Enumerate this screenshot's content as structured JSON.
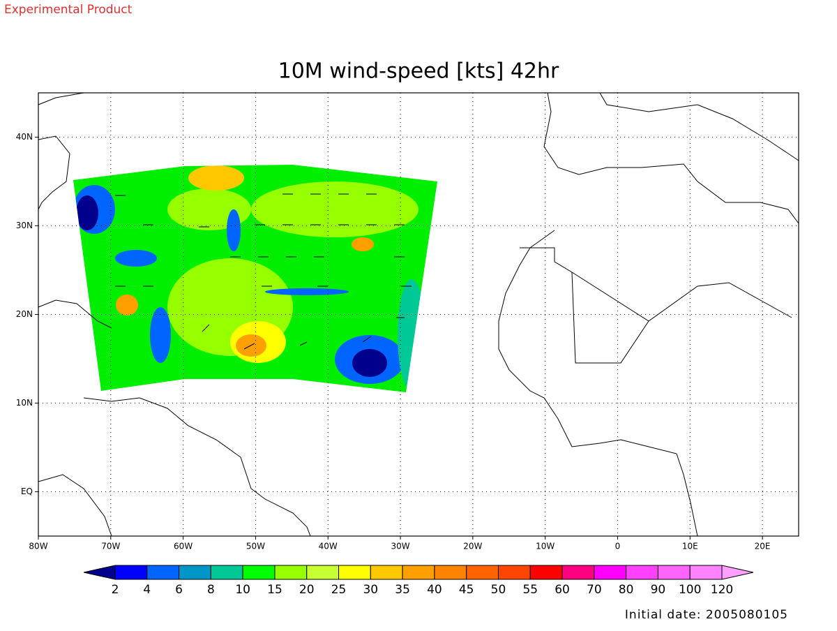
{
  "header": {
    "label": "Experimental Product"
  },
  "map": {
    "title": "10M wind-speed [kts] 42hr",
    "xlim": [
      -80,
      25
    ],
    "ylim": [
      -5,
      45
    ],
    "xticks": [
      {
        "value": -80,
        "label": "80W"
      },
      {
        "value": -70,
        "label": "70W"
      },
      {
        "value": -60,
        "label": "60W"
      },
      {
        "value": -50,
        "label": "50W"
      },
      {
        "value": -40,
        "label": "40W"
      },
      {
        "value": -30,
        "label": "30W"
      },
      {
        "value": -20,
        "label": "20W"
      },
      {
        "value": -10,
        "label": "10W"
      },
      0,
      {
        "value": 10,
        "label": "10E"
      },
      {
        "value": 20,
        "label": "20E"
      }
    ],
    "yticks": [
      {
        "value": 40,
        "label": "40N"
      },
      {
        "value": 30,
        "label": "30N"
      },
      {
        "value": 20,
        "label": "20N"
      },
      {
        "value": 10,
        "label": "10N"
      },
      {
        "value": 0,
        "label": "EQ"
      }
    ],
    "grid": true
  },
  "colorbar": {
    "levels": [
      2,
      4,
      6,
      8,
      10,
      15,
      20,
      25,
      30,
      35,
      40,
      45,
      50,
      55,
      60,
      70,
      80,
      90,
      100,
      120
    ],
    "colors": [
      "#00008c",
      "#0000ff",
      "#0064ff",
      "#0096c8",
      "#00c896",
      "#00ff00",
      "#96ff00",
      "#c8ff32",
      "#ffff00",
      "#ffc800",
      "#ffa000",
      "#ff8200",
      "#ff6400",
      "#ff4600",
      "#ff0000",
      "#ff0080",
      "#ff00ff",
      "#ff40ff",
      "#ff64ff",
      "#ff82ff",
      "#ffa0ff"
    ]
  },
  "footer": {
    "initial_date": "Initial date: 2005080105"
  }
}
